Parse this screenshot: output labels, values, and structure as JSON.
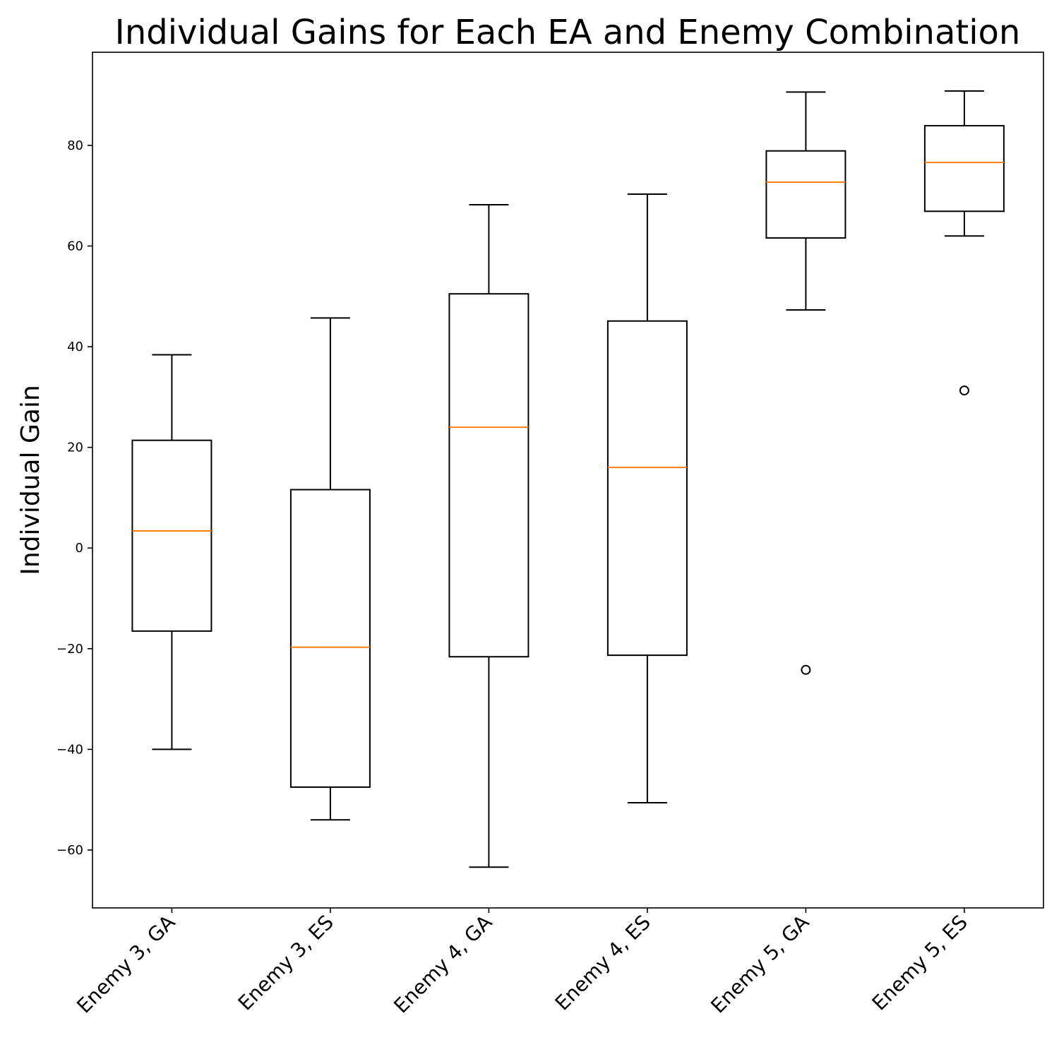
{
  "chart_data": {
    "type": "box",
    "title": "Individual Gains for Each EA and Enemy Combination",
    "xlabel": "",
    "ylabel": "Individual Gain",
    "ylim": [
      -71.5,
      98.5
    ],
    "yticks": [
      -60,
      -40,
      -20,
      0,
      20,
      40,
      60,
      80
    ],
    "ytick_labels": [
      "−60",
      "−40",
      "−20",
      "0",
      "20",
      "40",
      "60",
      "80"
    ],
    "grid": false,
    "colors": {
      "box": "#000000",
      "median": "#ff7f0e",
      "axis": "#000000"
    },
    "categories": [
      "Enemy 3, GA",
      "Enemy 3, ES",
      "Enemy 4, GA",
      "Enemy 4, ES",
      "Enemy 5, GA",
      "Enemy 5, ES"
    ],
    "boxes": [
      {
        "whisker_low": -40.0,
        "q1": -16.5,
        "median": 3.4,
        "q3": 21.4,
        "whisker_high": 38.4,
        "outliers": []
      },
      {
        "whisker_low": -54.0,
        "q1": -47.5,
        "median": -19.7,
        "q3": 11.6,
        "whisker_high": 45.7,
        "outliers": []
      },
      {
        "whisker_low": -63.4,
        "q1": -21.6,
        "median": 24.0,
        "q3": 50.5,
        "whisker_high": 68.2,
        "outliers": []
      },
      {
        "whisker_low": -50.6,
        "q1": -21.3,
        "median": 16.0,
        "q3": 45.1,
        "whisker_high": 70.3,
        "outliers": []
      },
      {
        "whisker_low": 47.3,
        "q1": 61.6,
        "median": 72.7,
        "q3": 78.9,
        "whisker_high": 90.6,
        "outliers": [
          -24.2
        ]
      },
      {
        "whisker_low": 62.0,
        "q1": 66.9,
        "median": 76.6,
        "q3": 83.9,
        "whisker_high": 90.8,
        "outliers": [
          31.3
        ]
      }
    ]
  }
}
